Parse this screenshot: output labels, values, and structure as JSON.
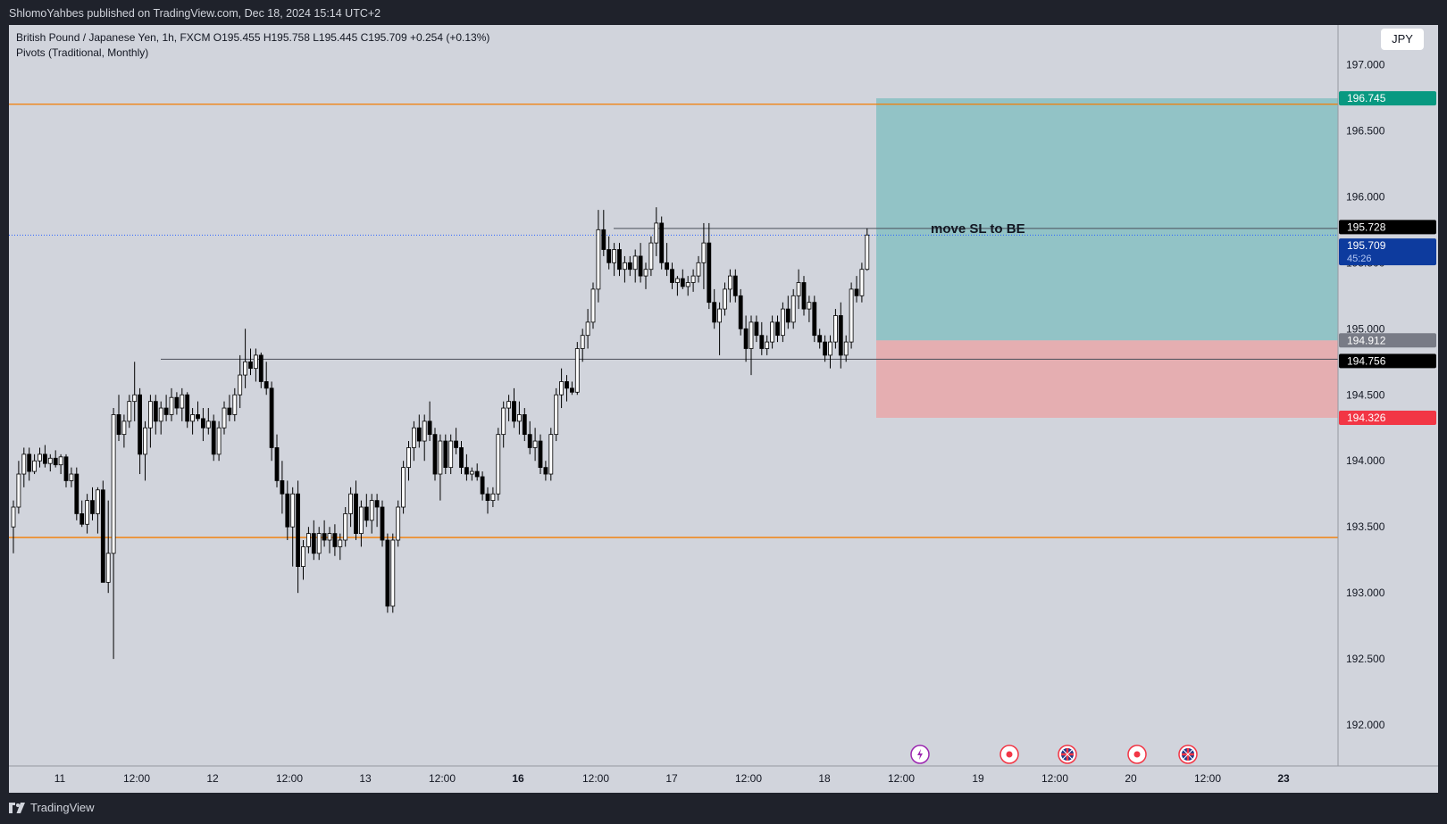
{
  "header": {
    "publisher_line": "ShlomoYahbes published on TradingView.com, Dec 18, 2024 15:14 UTC+2"
  },
  "legend": {
    "symbol_line": "British Pound / Japanese Yen, 1h, FXCM  O195.455  H195.758  L195.445  C195.709  +0.254 (+0.13%)",
    "indicator_line": "Pivots (Traditional, Monthly)"
  },
  "currency_button": "JPY",
  "footer": {
    "brand": "TradingView"
  },
  "colors": {
    "background": "#d1d4dc",
    "candle_up": "#ffffff",
    "candle_down": "#000000",
    "pivot_line": "#f57c00",
    "target_zone": "#5fb5b5",
    "stop_zone": "#ef9a9a",
    "target_label": "#089981",
    "stop_label": "#f23645",
    "last_price_label": "#0d3b9e"
  },
  "chart_data": {
    "type": "candlestick",
    "y_axis": {
      "ylim": [
        191.69,
        197.3
      ],
      "ticks": [
        192.0,
        192.5,
        193.0,
        193.5,
        194.0,
        194.5,
        195.0,
        195.5,
        196.0,
        196.5,
        197.0
      ],
      "tick_labels": [
        "192.000",
        "192.500",
        "193.000",
        "193.500",
        "194.000",
        "194.500",
        "195.000",
        "195.500",
        "196.000",
        "196.500",
        "197.000"
      ]
    },
    "x_axis": {
      "labels": [
        "11",
        "12:00",
        "12",
        "12:00",
        "13",
        "12:00",
        "16",
        "12:00",
        "17",
        "12:00",
        "18",
        "12:00",
        "19",
        "12:00",
        "20",
        "12:00",
        "23"
      ],
      "bold_labels": [
        "16",
        "23"
      ]
    },
    "pivot_levels": [
      196.7,
      193.42
    ],
    "horizontal_lines": [
      195.76,
      194.77
    ],
    "last_price_dotted": 195.709,
    "position": {
      "entry": 194.912,
      "target": 196.745,
      "stop": 194.326
    },
    "annotation": "move SL to BE",
    "price_labels": [
      {
        "value": "196.745",
        "price": 196.745,
        "bg": "#089981",
        "color": "#ffffff"
      },
      {
        "value": "195.728",
        "price": 195.77,
        "bg": "#000000",
        "color": "#ffffff"
      },
      {
        "value": "195.709",
        "sub": "45:26",
        "price": 195.63,
        "bg": "#0d3b9e",
        "color": "#ffffff"
      },
      {
        "value": "194.912",
        "price": 194.912,
        "bg": "#787b86",
        "color": "#ffffff"
      },
      {
        "value": "194.756",
        "price": 194.756,
        "bg": "#000000",
        "color": "#ffffff"
      },
      {
        "value": "194.326",
        "price": 194.326,
        "bg": "#f23645",
        "color": "#ffffff"
      }
    ],
    "candles": [
      [
        193.5,
        193.7,
        193.3,
        193.65
      ],
      [
        193.65,
        194.0,
        193.6,
        193.9
      ],
      [
        193.9,
        194.1,
        193.8,
        194.05
      ],
      [
        194.05,
        194.1,
        193.85,
        193.92
      ],
      [
        193.92,
        194.05,
        193.9,
        194.0
      ],
      [
        194.0,
        194.1,
        193.95,
        194.05
      ],
      [
        194.05,
        194.12,
        193.95,
        193.98
      ],
      [
        193.98,
        194.05,
        193.92,
        194.02
      ],
      [
        194.02,
        194.08,
        193.95,
        193.97
      ],
      [
        193.97,
        194.05,
        193.9,
        194.03
      ],
      [
        194.03,
        194.05,
        193.8,
        193.85
      ],
      [
        193.85,
        193.95,
        193.8,
        193.9
      ],
      [
        193.9,
        193.95,
        193.55,
        193.6
      ],
      [
        193.6,
        193.7,
        193.5,
        193.52
      ],
      [
        193.52,
        193.75,
        193.45,
        193.7
      ],
      [
        193.7,
        193.8,
        193.55,
        193.6
      ],
      [
        193.6,
        193.8,
        193.45,
        193.78
      ],
      [
        193.78,
        193.85,
        193.1,
        193.08
      ],
      [
        193.08,
        193.7,
        193.0,
        193.3
      ],
      [
        193.3,
        194.4,
        192.5,
        194.35
      ],
      [
        194.35,
        194.5,
        194.15,
        194.2
      ],
      [
        194.2,
        194.35,
        194.1,
        194.3
      ],
      [
        194.3,
        194.5,
        194.25,
        194.45
      ],
      [
        194.45,
        194.75,
        194.3,
        194.5
      ],
      [
        194.5,
        194.55,
        193.9,
        194.05
      ],
      [
        194.05,
        194.3,
        193.85,
        194.25
      ],
      [
        194.25,
        194.5,
        194.1,
        194.45
      ],
      [
        194.45,
        194.5,
        194.2,
        194.3
      ],
      [
        194.3,
        194.45,
        194.2,
        194.4
      ],
      [
        194.4,
        194.5,
        194.3,
        194.35
      ],
      [
        194.35,
        194.55,
        194.3,
        194.48
      ],
      [
        194.48,
        194.52,
        194.35,
        194.4
      ],
      [
        194.4,
        194.55,
        194.3,
        194.5
      ],
      [
        194.5,
        194.52,
        194.25,
        194.3
      ],
      [
        194.3,
        194.4,
        194.2,
        194.35
      ],
      [
        194.35,
        194.45,
        194.3,
        194.32
      ],
      [
        194.32,
        194.4,
        194.15,
        194.25
      ],
      [
        194.25,
        194.4,
        194.2,
        194.3
      ],
      [
        194.3,
        194.35,
        194.0,
        194.05
      ],
      [
        194.05,
        194.3,
        194.0,
        194.25
      ],
      [
        194.25,
        194.45,
        194.2,
        194.4
      ],
      [
        194.4,
        194.5,
        194.3,
        194.35
      ],
      [
        194.35,
        194.55,
        194.3,
        194.5
      ],
      [
        194.5,
        194.8,
        194.4,
        194.65
      ],
      [
        194.65,
        195.0,
        194.55,
        194.75
      ],
      [
        194.75,
        194.85,
        194.65,
        194.7
      ],
      [
        194.7,
        194.85,
        194.6,
        194.8
      ],
      [
        194.8,
        194.82,
        194.55,
        194.6
      ],
      [
        194.6,
        194.75,
        194.5,
        194.55
      ],
      [
        194.55,
        194.6,
        194.0,
        194.1
      ],
      [
        194.1,
        194.2,
        193.8,
        193.85
      ],
      [
        193.85,
        194.0,
        193.6,
        193.75
      ],
      [
        193.75,
        193.85,
        193.4,
        193.5
      ],
      [
        193.5,
        193.8,
        193.2,
        193.75
      ],
      [
        193.75,
        193.85,
        193.0,
        193.2
      ],
      [
        193.2,
        193.4,
        193.1,
        193.35
      ],
      [
        193.35,
        193.5,
        193.3,
        193.45
      ],
      [
        193.45,
        193.55,
        193.25,
        193.3
      ],
      [
        193.3,
        193.5,
        193.25,
        193.45
      ],
      [
        193.45,
        193.55,
        193.35,
        193.4
      ],
      [
        193.4,
        193.5,
        193.3,
        193.45
      ],
      [
        193.45,
        193.52,
        193.28,
        193.35
      ],
      [
        193.35,
        193.45,
        193.25,
        193.4
      ],
      [
        193.4,
        193.65,
        193.35,
        193.6
      ],
      [
        193.6,
        193.8,
        193.5,
        193.75
      ],
      [
        193.75,
        193.85,
        193.4,
        193.45
      ],
      [
        193.45,
        193.7,
        193.35,
        193.65
      ],
      [
        193.65,
        193.75,
        193.5,
        193.55
      ],
      [
        193.55,
        193.75,
        193.45,
        193.7
      ],
      [
        193.7,
        193.75,
        193.5,
        193.65
      ],
      [
        193.65,
        193.7,
        193.35,
        193.4
      ],
      [
        193.4,
        193.45,
        192.85,
        192.9
      ],
      [
        192.9,
        193.45,
        192.85,
        193.4
      ],
      [
        193.4,
        193.7,
        193.35,
        193.65
      ],
      [
        193.65,
        194.0,
        193.6,
        193.95
      ],
      [
        193.95,
        194.15,
        193.85,
        194.1
      ],
      [
        194.1,
        194.3,
        194.0,
        194.25
      ],
      [
        194.25,
        194.35,
        194.1,
        194.15
      ],
      [
        194.15,
        194.35,
        194.0,
        194.3
      ],
      [
        194.3,
        194.45,
        194.15,
        194.2
      ],
      [
        194.2,
        194.25,
        193.85,
        193.9
      ],
      [
        193.9,
        194.2,
        193.7,
        194.15
      ],
      [
        194.15,
        194.2,
        193.9,
        193.95
      ],
      [
        193.95,
        194.2,
        193.9,
        194.15
      ],
      [
        194.15,
        194.25,
        194.05,
        194.1
      ],
      [
        194.1,
        194.15,
        193.9,
        193.95
      ],
      [
        193.95,
        194.05,
        193.85,
        193.9
      ],
      [
        193.9,
        193.95,
        193.85,
        193.92
      ],
      [
        193.92,
        193.98,
        193.85,
        193.88
      ],
      [
        193.88,
        193.92,
        193.7,
        193.75
      ],
      [
        193.75,
        193.8,
        193.6,
        193.7
      ],
      [
        193.7,
        193.8,
        193.65,
        193.75
      ],
      [
        193.75,
        194.25,
        193.7,
        194.2
      ],
      [
        194.2,
        194.45,
        194.1,
        194.4
      ],
      [
        194.4,
        194.5,
        194.3,
        194.45
      ],
      [
        194.45,
        194.55,
        194.25,
        194.3
      ],
      [
        194.3,
        194.45,
        194.2,
        194.35
      ],
      [
        194.35,
        194.4,
        194.15,
        194.2
      ],
      [
        194.2,
        194.3,
        194.05,
        194.1
      ],
      [
        194.1,
        194.25,
        194.0,
        194.15
      ],
      [
        194.15,
        194.2,
        193.9,
        193.95
      ],
      [
        193.95,
        194.0,
        193.85,
        193.9
      ],
      [
        193.9,
        194.25,
        193.85,
        194.2
      ],
      [
        194.2,
        194.55,
        194.15,
        194.5
      ],
      [
        194.5,
        194.7,
        194.4,
        194.6
      ],
      [
        194.6,
        194.65,
        194.45,
        194.55
      ],
      [
        194.55,
        194.6,
        194.5,
        194.52
      ],
      [
        194.52,
        194.9,
        194.5,
        194.85
      ],
      [
        194.85,
        195.0,
        194.75,
        194.95
      ],
      [
        194.95,
        195.15,
        194.85,
        195.05
      ],
      [
        195.05,
        195.35,
        195.0,
        195.3
      ],
      [
        195.3,
        195.9,
        195.2,
        195.75
      ],
      [
        195.75,
        195.9,
        195.55,
        195.6
      ],
      [
        195.6,
        195.7,
        195.45,
        195.5
      ],
      [
        195.5,
        195.65,
        195.4,
        195.6
      ],
      [
        195.6,
        195.65,
        195.4,
        195.45
      ],
      [
        195.45,
        195.55,
        195.35,
        195.5
      ],
      [
        195.5,
        195.55,
        195.4,
        195.45
      ],
      [
        195.45,
        195.6,
        195.35,
        195.55
      ],
      [
        195.55,
        195.65,
        195.35,
        195.4
      ],
      [
        195.4,
        195.5,
        195.3,
        195.45
      ],
      [
        195.45,
        195.7,
        195.4,
        195.65
      ],
      [
        195.65,
        195.92,
        195.55,
        195.8
      ],
      [
        195.8,
        195.85,
        195.45,
        195.5
      ],
      [
        195.5,
        195.65,
        195.4,
        195.45
      ],
      [
        195.45,
        195.5,
        195.3,
        195.35
      ],
      [
        195.35,
        195.4,
        195.25,
        195.38
      ],
      [
        195.38,
        195.45,
        195.3,
        195.32
      ],
      [
        195.32,
        195.4,
        195.25,
        195.35
      ],
      [
        195.35,
        195.45,
        195.28,
        195.4
      ],
      [
        195.4,
        195.55,
        195.35,
        195.5
      ],
      [
        195.5,
        195.8,
        195.3,
        195.65
      ],
      [
        195.65,
        195.8,
        195.15,
        195.2
      ],
      [
        195.2,
        195.3,
        195.0,
        195.05
      ],
      [
        195.05,
        195.2,
        194.8,
        195.15
      ],
      [
        195.15,
        195.35,
        195.1,
        195.3
      ],
      [
        195.3,
        195.45,
        195.2,
        195.4
      ],
      [
        195.4,
        195.45,
        195.2,
        195.25
      ],
      [
        195.25,
        195.3,
        194.95,
        195.0
      ],
      [
        195.0,
        195.1,
        194.75,
        194.85
      ],
      [
        194.85,
        195.1,
        194.65,
        195.05
      ],
      [
        195.05,
        195.1,
        194.9,
        194.95
      ],
      [
        194.95,
        195.05,
        194.8,
        194.85
      ],
      [
        194.85,
        194.95,
        194.8,
        194.9
      ],
      [
        194.9,
        195.1,
        194.85,
        195.05
      ],
      [
        195.05,
        195.1,
        194.9,
        194.95
      ],
      [
        194.95,
        195.2,
        194.9,
        195.15
      ],
      [
        195.15,
        195.25,
        195.0,
        195.05
      ],
      [
        195.05,
        195.3,
        195.0,
        195.25
      ],
      [
        195.25,
        195.45,
        195.15,
        195.35
      ],
      [
        195.35,
        195.4,
        195.1,
        195.15
      ],
      [
        195.15,
        195.25,
        195.05,
        195.2
      ],
      [
        195.2,
        195.25,
        194.9,
        194.95
      ],
      [
        194.95,
        195.0,
        194.85,
        194.9
      ],
      [
        194.9,
        194.95,
        194.75,
        194.8
      ],
      [
        194.8,
        194.95,
        194.7,
        194.9
      ],
      [
        194.9,
        195.15,
        194.85,
        195.1
      ],
      [
        195.1,
        195.2,
        194.7,
        194.8
      ],
      [
        194.8,
        194.95,
        194.75,
        194.9
      ],
      [
        194.9,
        195.35,
        194.85,
        195.3
      ],
      [
        195.3,
        195.4,
        195.2,
        195.25
      ],
      [
        195.25,
        195.5,
        195.2,
        195.45
      ],
      [
        195.45,
        195.76,
        195.44,
        195.71
      ]
    ],
    "markers": [
      "bolt-event",
      "red-event",
      "uk-flag-event",
      "red-event",
      "uk-flag-event"
    ]
  }
}
